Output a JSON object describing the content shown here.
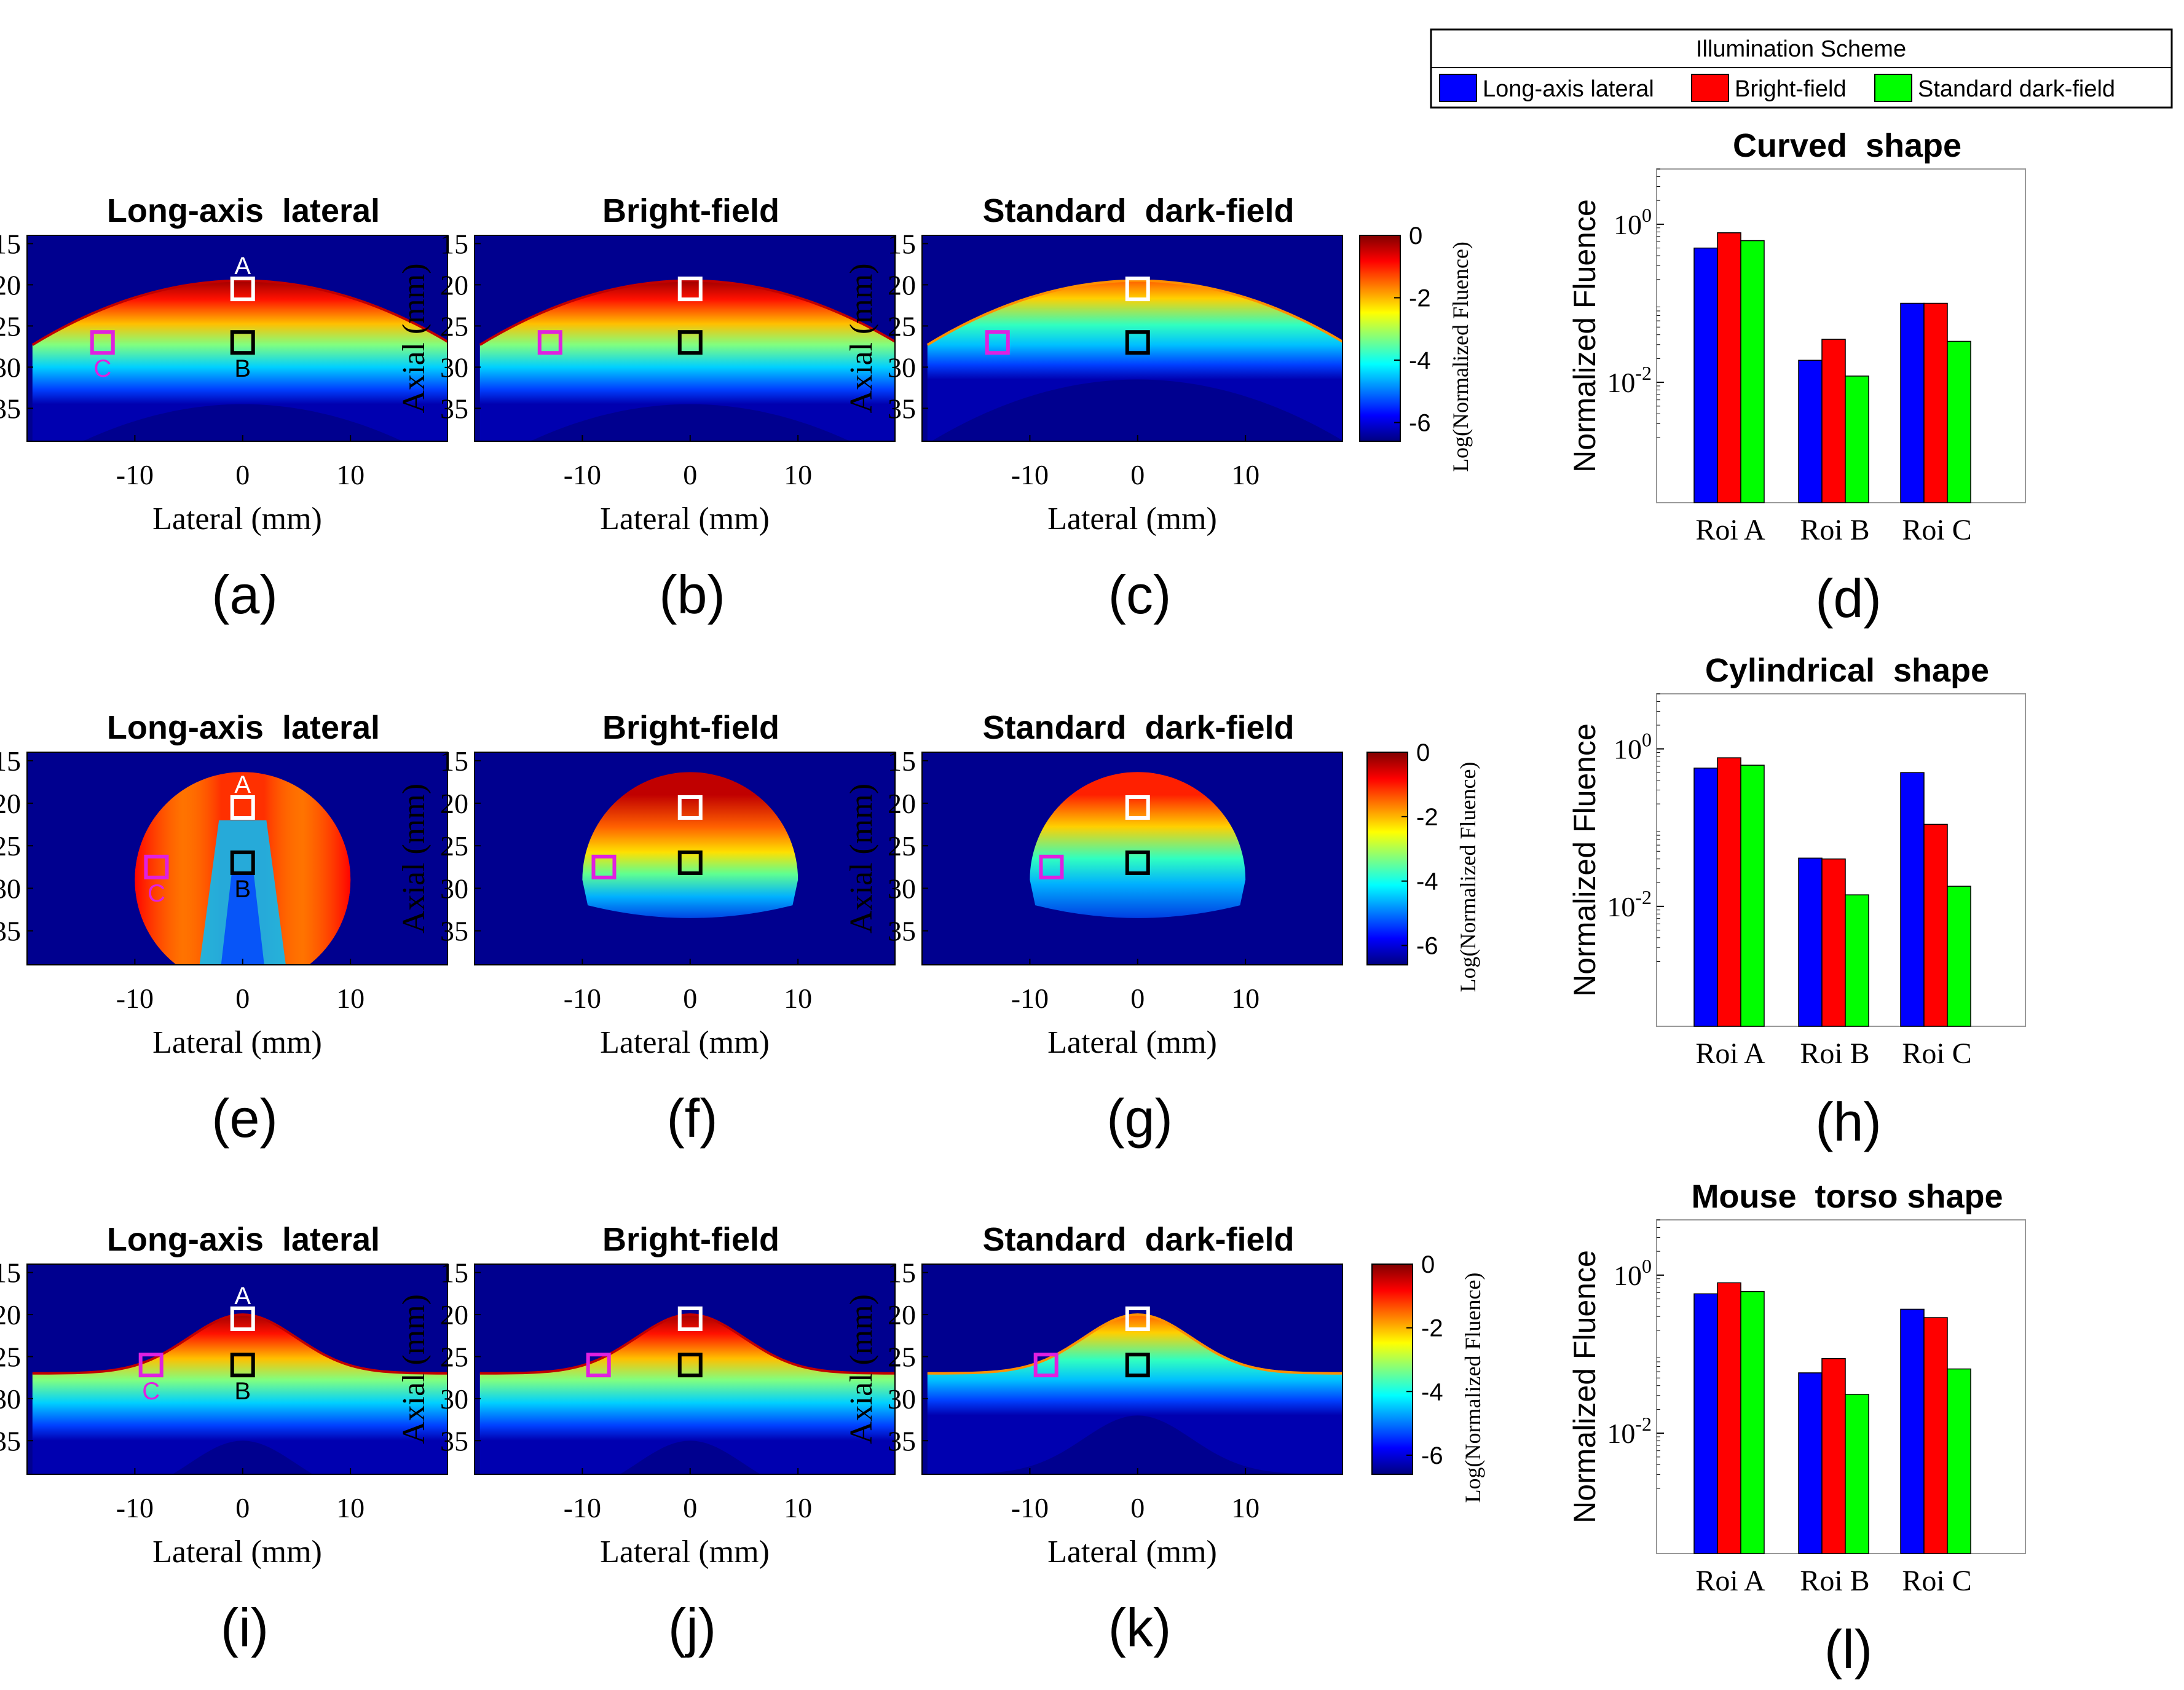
{
  "legend": {
    "title": "Illumination Scheme",
    "entries": [
      {
        "label": "Long-axis lateral",
        "color": "#0000ff"
      },
      {
        "label": "Bright-field",
        "color": "#ff0000"
      },
      {
        "label": "Standard dark-field",
        "color": "#00ff00"
      }
    ]
  },
  "rows": [
    {
      "panels": [
        {
          "title": "Long-axis  lateral",
          "letter": "(a)",
          "shape": "curved",
          "scheme": "lateral",
          "roi_labels": [
            "A",
            "B",
            "C"
          ]
        },
        {
          "title": "Bright-field",
          "letter": "(b)",
          "shape": "curved",
          "scheme": "bright",
          "roi_labels": []
        },
        {
          "title": "Standard  dark-field",
          "letter": "(c)",
          "shape": "curved",
          "scheme": "dark",
          "roi_labels": []
        }
      ],
      "colorbar": {
        "label": "Log(Normalized Fluence)",
        "ticks": [
          "0",
          "-2",
          "-4",
          "-6"
        ]
      }
    },
    {
      "panels": [
        {
          "title": "Long-axis  lateral",
          "letter": "(e)",
          "shape": "cylinder",
          "scheme": "lateral",
          "roi_labels": [
            "A",
            "B",
            "C"
          ]
        },
        {
          "title": "Bright-field",
          "letter": "(f)",
          "shape": "cylinder",
          "scheme": "bright",
          "roi_labels": []
        },
        {
          "title": "Standard  dark-field",
          "letter": "(g)",
          "shape": "cylinder",
          "scheme": "dark",
          "roi_labels": []
        }
      ],
      "colorbar": {
        "label": "Log(Normalized Fluence)",
        "ticks": [
          "0",
          "-2",
          "-4",
          "-6"
        ]
      }
    },
    {
      "panels": [
        {
          "title": "Long-axis  lateral",
          "letter": "(i)",
          "shape": "torso",
          "scheme": "lateral",
          "roi_labels": [
            "A",
            "B",
            "C"
          ]
        },
        {
          "title": "Bright-field",
          "letter": "(j)",
          "shape": "torso",
          "scheme": "bright",
          "roi_labels": []
        },
        {
          "title": "Standard  dark-field",
          "letter": "(k)",
          "shape": "torso",
          "scheme": "dark",
          "roi_labels": []
        }
      ],
      "colorbar": {
        "label": "Log(Normalized Fluence)",
        "ticks": [
          "0",
          "-2",
          "-4",
          "-6"
        ]
      }
    }
  ],
  "image_axes": {
    "xlabel": "Lateral (mm)",
    "ylabel": "Axial (mm)",
    "xticks": [
      "-10",
      "0",
      "10"
    ],
    "yticks": [
      "15",
      "20",
      "25",
      "30",
      "35"
    ]
  },
  "chart_data": [
    {
      "type": "bar",
      "title": "Curved  shape",
      "letter": "(d)",
      "yscale": "log",
      "ylabel": "Normalized Fluence",
      "ytick_labels": [
        "10",
        "10"
      ],
      "ytick_exponents": [
        "0",
        "-2"
      ],
      "ylim": [
        0.0003,
        5
      ],
      "categories": [
        "Roi A",
        "Roi B",
        "Roi C"
      ],
      "series": [
        {
          "name": "Long-axis lateral",
          "values": [
            0.5,
            0.019,
            0.1
          ]
        },
        {
          "name": "Bright-field",
          "values": [
            0.78,
            0.035,
            0.1
          ]
        },
        {
          "name": "Standard dark-field",
          "values": [
            0.62,
            0.012,
            0.033
          ]
        }
      ]
    },
    {
      "type": "bar",
      "title": "Cylindrical  shape",
      "letter": "(h)",
      "yscale": "log",
      "ylabel": "Normalized Fluence",
      "ytick_labels": [
        "10",
        "10"
      ],
      "ytick_exponents": [
        "0",
        "-2"
      ],
      "ylim": [
        0.0003,
        5
      ],
      "categories": [
        "Roi A",
        "Roi B",
        "Roi C"
      ],
      "series": [
        {
          "name": "Long-axis lateral",
          "values": [
            0.57,
            0.041,
            0.5
          ]
        },
        {
          "name": "Bright-field",
          "values": [
            0.77,
            0.04,
            0.11
          ]
        },
        {
          "name": "Standard dark-field",
          "values": [
            0.62,
            0.014,
            0.018
          ]
        }
      ]
    },
    {
      "type": "bar",
      "title": "Mouse  torso shape",
      "letter": "(l)",
      "yscale": "log",
      "ylabel": "Normalized Fluence",
      "ytick_labels": [
        "10",
        "10"
      ],
      "ytick_exponents": [
        "0",
        "-2"
      ],
      "ylim": [
        0.0003,
        5
      ],
      "categories": [
        "Roi A",
        "Roi B",
        "Roi C"
      ],
      "series": [
        {
          "name": "Long-axis lateral",
          "values": [
            0.58,
            0.058,
            0.37
          ]
        },
        {
          "name": "Bright-field",
          "values": [
            0.8,
            0.088,
            0.29
          ]
        },
        {
          "name": "Standard dark-field",
          "values": [
            0.62,
            0.031,
            0.065
          ]
        }
      ]
    }
  ]
}
